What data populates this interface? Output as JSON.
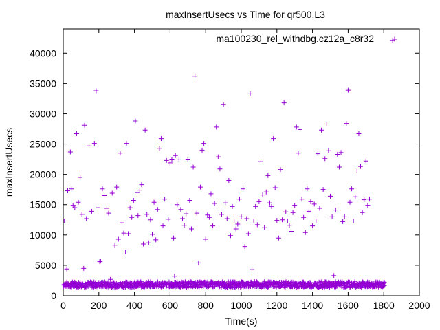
{
  "chart_data": {
    "type": "scatter",
    "title": "maxInsertUsecs vs Time for qr500.L3",
    "xlabel": "Time(s)",
    "ylabel": "maxInsertUsecs",
    "xlim": [
      0,
      2000
    ],
    "ylim": [
      0,
      44000
    ],
    "xticks": [
      0,
      200,
      400,
      600,
      800,
      1000,
      1200,
      1400,
      1600,
      1800,
      2000
    ],
    "yticks": [
      0,
      5000,
      10000,
      15000,
      20000,
      25000,
      30000,
      35000,
      40000
    ],
    "grid": false,
    "legend_position": "top-right",
    "marker": "+",
    "series": [
      {
        "name": "ma100230_rel_withdbg.cz12a_c8r32",
        "color": "#9400d3",
        "baseline": {
          "x_start": 0,
          "x_end": 1800,
          "x_step": 5,
          "y_min": 1300,
          "y_max": 2300
        },
        "points": [
          [
            5,
            12300
          ],
          [
            20,
            4400
          ],
          [
            25,
            17300
          ],
          [
            40,
            23700
          ],
          [
            45,
            17600
          ],
          [
            55,
            14900
          ],
          [
            65,
            14500
          ],
          [
            75,
            26700
          ],
          [
            85,
            15400
          ],
          [
            95,
            19500
          ],
          [
            105,
            13400
          ],
          [
            115,
            4500
          ],
          [
            120,
            28100
          ],
          [
            130,
            12700
          ],
          [
            145,
            24700
          ],
          [
            160,
            13900
          ],
          [
            175,
            25100
          ],
          [
            185,
            33800
          ],
          [
            195,
            14500
          ],
          [
            205,
            5600
          ],
          [
            210,
            5700
          ],
          [
            220,
            17600
          ],
          [
            230,
            16500
          ],
          [
            245,
            14400
          ],
          [
            255,
            13600
          ],
          [
            265,
            2700
          ],
          [
            275,
            16900
          ],
          [
            290,
            8300
          ],
          [
            300,
            17900
          ],
          [
            310,
            9300
          ],
          [
            320,
            23500
          ],
          [
            330,
            12000
          ],
          [
            340,
            10300
          ],
          [
            350,
            7200
          ],
          [
            355,
            25100
          ],
          [
            365,
            10200
          ],
          [
            375,
            14500
          ],
          [
            385,
            12900
          ],
          [
            395,
            15700
          ],
          [
            405,
            28800
          ],
          [
            415,
            17000
          ],
          [
            420,
            13200
          ],
          [
            430,
            17400
          ],
          [
            440,
            18300
          ],
          [
            450,
            8500
          ],
          [
            460,
            27300
          ],
          [
            470,
            13400
          ],
          [
            480,
            8700
          ],
          [
            490,
            12500
          ],
          [
            500,
            10100
          ],
          [
            510,
            15400
          ],
          [
            520,
            9200
          ],
          [
            530,
            14200
          ],
          [
            540,
            24300
          ],
          [
            550,
            25900
          ],
          [
            560,
            11500
          ],
          [
            570,
            15900
          ],
          [
            580,
            22300
          ],
          [
            590,
            12600
          ],
          [
            600,
            21900
          ],
          [
            610,
            22400
          ],
          [
            620,
            9500
          ],
          [
            625,
            3200
          ],
          [
            630,
            23100
          ],
          [
            640,
            15000
          ],
          [
            650,
            22500
          ],
          [
            660,
            14200
          ],
          [
            670,
            12700
          ],
          [
            680,
            11600
          ],
          [
            690,
            13500
          ],
          [
            700,
            22400
          ],
          [
            710,
            15700
          ],
          [
            720,
            11000
          ],
          [
            730,
            21200
          ],
          [
            740,
            36200
          ],
          [
            750,
            13600
          ],
          [
            760,
            5400
          ],
          [
            770,
            17900
          ],
          [
            780,
            24000
          ],
          [
            790,
            25100
          ],
          [
            800,
            9300
          ],
          [
            810,
            13300
          ],
          [
            820,
            12900
          ],
          [
            830,
            16800
          ],
          [
            840,
            11500
          ],
          [
            850,
            15200
          ],
          [
            860,
            27800
          ],
          [
            870,
            22900
          ],
          [
            880,
            20900
          ],
          [
            890,
            13400
          ],
          [
            900,
            31500
          ],
          [
            910,
            15300
          ],
          [
            920,
            12700
          ],
          [
            930,
            19000
          ],
          [
            940,
            9900
          ],
          [
            950,
            14700
          ],
          [
            960,
            12300
          ],
          [
            970,
            11000
          ],
          [
            980,
            11800
          ],
          [
            990,
            15900
          ],
          [
            1000,
            13000
          ],
          [
            1010,
            17600
          ],
          [
            1020,
            8100
          ],
          [
            1030,
            12700
          ],
          [
            1040,
            10200
          ],
          [
            1050,
            33300
          ],
          [
            1060,
            4300
          ],
          [
            1070,
            12300
          ],
          [
            1080,
            14700
          ],
          [
            1090,
            11700
          ],
          [
            1100,
            15500
          ],
          [
            1110,
            22100
          ],
          [
            1120,
            16600
          ],
          [
            1130,
            11200
          ],
          [
            1140,
            17100
          ],
          [
            1150,
            19800
          ],
          [
            1160,
            15300
          ],
          [
            1170,
            14700
          ],
          [
            1180,
            25900
          ],
          [
            1190,
            17800
          ],
          [
            1200,
            12400
          ],
          [
            1210,
            9500
          ],
          [
            1220,
            20800
          ],
          [
            1230,
            12500
          ],
          [
            1240,
            31800
          ],
          [
            1250,
            13800
          ],
          [
            1260,
            12300
          ],
          [
            1270,
            11600
          ],
          [
            1280,
            10600
          ],
          [
            1290,
            13700
          ],
          [
            1300,
            14900
          ],
          [
            1310,
            27800
          ],
          [
            1320,
            23500
          ],
          [
            1330,
            27400
          ],
          [
            1340,
            15900
          ],
          [
            1350,
            12900
          ],
          [
            1360,
            10400
          ],
          [
            1370,
            17600
          ],
          [
            1380,
            13900
          ],
          [
            1390,
            15500
          ],
          [
            1400,
            11500
          ],
          [
            1410,
            15100
          ],
          [
            1420,
            12300
          ],
          [
            1430,
            23400
          ],
          [
            1440,
            14400
          ],
          [
            1450,
            27300
          ],
          [
            1460,
            17500
          ],
          [
            1470,
            22600
          ],
          [
            1480,
            28300
          ],
          [
            1490,
            23900
          ],
          [
            1500,
            16400
          ],
          [
            1510,
            13000
          ],
          [
            1520,
            3300
          ],
          [
            1530,
            14100
          ],
          [
            1540,
            23300
          ],
          [
            1550,
            21200
          ],
          [
            1560,
            23600
          ],
          [
            1570,
            12200
          ],
          [
            1580,
            13000
          ],
          [
            1590,
            28400
          ],
          [
            1600,
            33900
          ],
          [
            1610,
            15400
          ],
          [
            1620,
            17600
          ],
          [
            1630,
            12300
          ],
          [
            1640,
            16300
          ],
          [
            1650,
            20700
          ],
          [
            1660,
            26700
          ],
          [
            1670,
            21300
          ],
          [
            1680,
            13700
          ],
          [
            1690,
            15800
          ],
          [
            1700,
            22200
          ],
          [
            1710,
            14900
          ],
          [
            1720,
            15900
          ],
          [
            1850,
            42100
          ]
        ]
      }
    ]
  }
}
